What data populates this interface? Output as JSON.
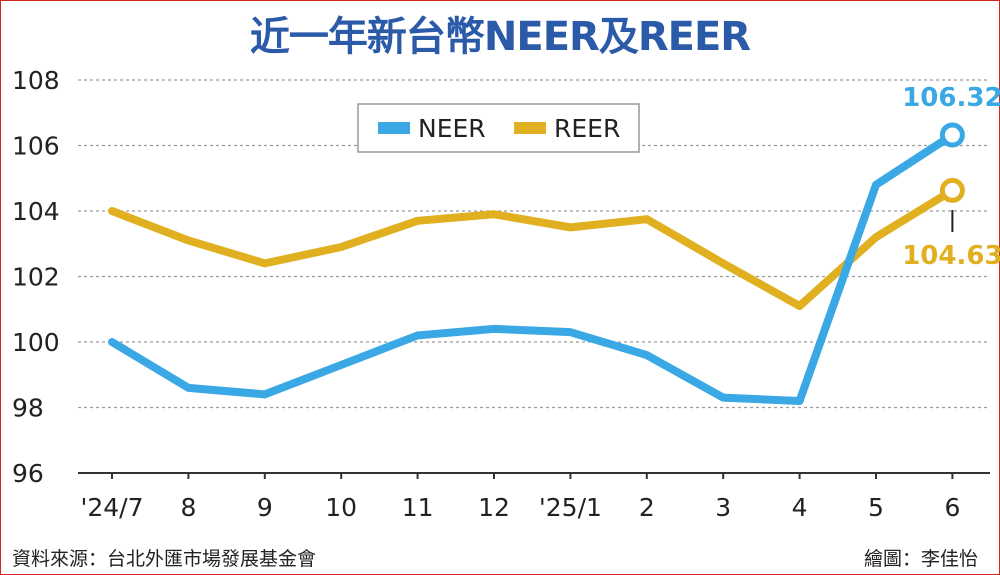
{
  "chart_data": {
    "type": "line",
    "title": "近一年新台幣NEER及REER",
    "categories": [
      "'24/7",
      "8",
      "9",
      "10",
      "11",
      "12",
      "'25/1",
      "2",
      "3",
      "4",
      "5",
      "6"
    ],
    "series": [
      {
        "name": "NEER",
        "color": "#3aa8e4",
        "values": [
          100.0,
          98.6,
          98.4,
          99.3,
          100.2,
          100.4,
          100.3,
          99.6,
          98.3,
          98.2,
          104.8,
          106.32
        ]
      },
      {
        "name": "REER",
        "color": "#e0b020",
        "values": [
          104.0,
          103.1,
          102.4,
          102.9,
          103.7,
          103.9,
          103.5,
          103.75,
          102.4,
          101.1,
          103.2,
          104.63
        ]
      }
    ],
    "yticks": [
      "96",
      "98",
      "100",
      "102",
      "104",
      "106",
      "108"
    ],
    "ylim": [
      96,
      108
    ],
    "grid": true,
    "legend": "top-center",
    "annotations": [
      "106.32",
      "104.63"
    ]
  },
  "source": "資料來源：台北外匯市場發展基金會",
  "credit": "繪圖：李佳怡"
}
